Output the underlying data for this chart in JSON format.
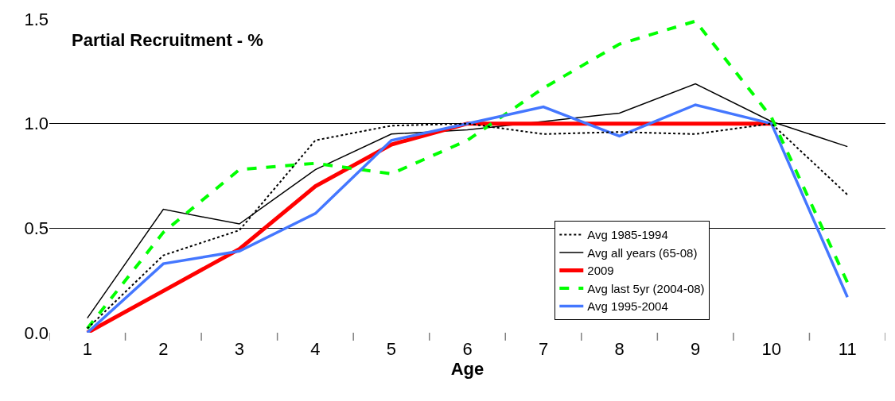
{
  "chart_data": {
    "type": "line",
    "title": "Partial Recruitment - %",
    "xlabel": "Age",
    "categories": [
      "1",
      "2",
      "3",
      "4",
      "5",
      "6",
      "7",
      "8",
      "9",
      "10",
      "11"
    ],
    "series": [
      {
        "name": "Avg 1985-1994",
        "color": "#000000",
        "line_style": "dotted",
        "values": [
          0.02,
          0.37,
          0.49,
          0.92,
          0.99,
          1.0,
          0.95,
          0.96,
          0.95,
          1.0,
          0.66
        ]
      },
      {
        "name": "Avg all years (65-08)",
        "color": "#000000",
        "line_style": "solid",
        "values": [
          0.07,
          0.59,
          0.52,
          0.78,
          0.95,
          0.97,
          1.01,
          1.05,
          1.19,
          1.01,
          0.89
        ]
      },
      {
        "name": "2009",
        "color": "#ff0000",
        "line_style": "solid",
        "values": [
          0.0,
          0.2,
          0.4,
          0.7,
          0.9,
          1.0,
          1.0,
          1.0,
          1.0,
          1.0,
          null
        ]
      },
      {
        "name": "Avg last 5yr (2004-08)",
        "color": "#00ff00",
        "line_style": "dashed",
        "values": [
          0.02,
          0.48,
          0.78,
          0.81,
          0.76,
          0.92,
          1.17,
          1.38,
          1.49,
          1.03,
          0.24
        ]
      },
      {
        "name": "Avg 1995-2004",
        "color": "#4477ff",
        "line_style": "solid",
        "values": [
          0.0,
          0.33,
          0.39,
          0.57,
          0.92,
          1.0,
          1.08,
          0.94,
          1.09,
          1.0,
          0.17
        ]
      }
    ],
    "ylim": [
      0,
      1.5
    ],
    "yticks": [
      {
        "value": 0,
        "label": "0.0"
      },
      {
        "value": 0.5,
        "label": "0.5"
      },
      {
        "value": 1.0,
        "label": "1.0"
      },
      {
        "value": 1.5,
        "label": "1.5"
      }
    ],
    "grid": "y",
    "legend": "bottom right",
    "marker": "none"
  }
}
